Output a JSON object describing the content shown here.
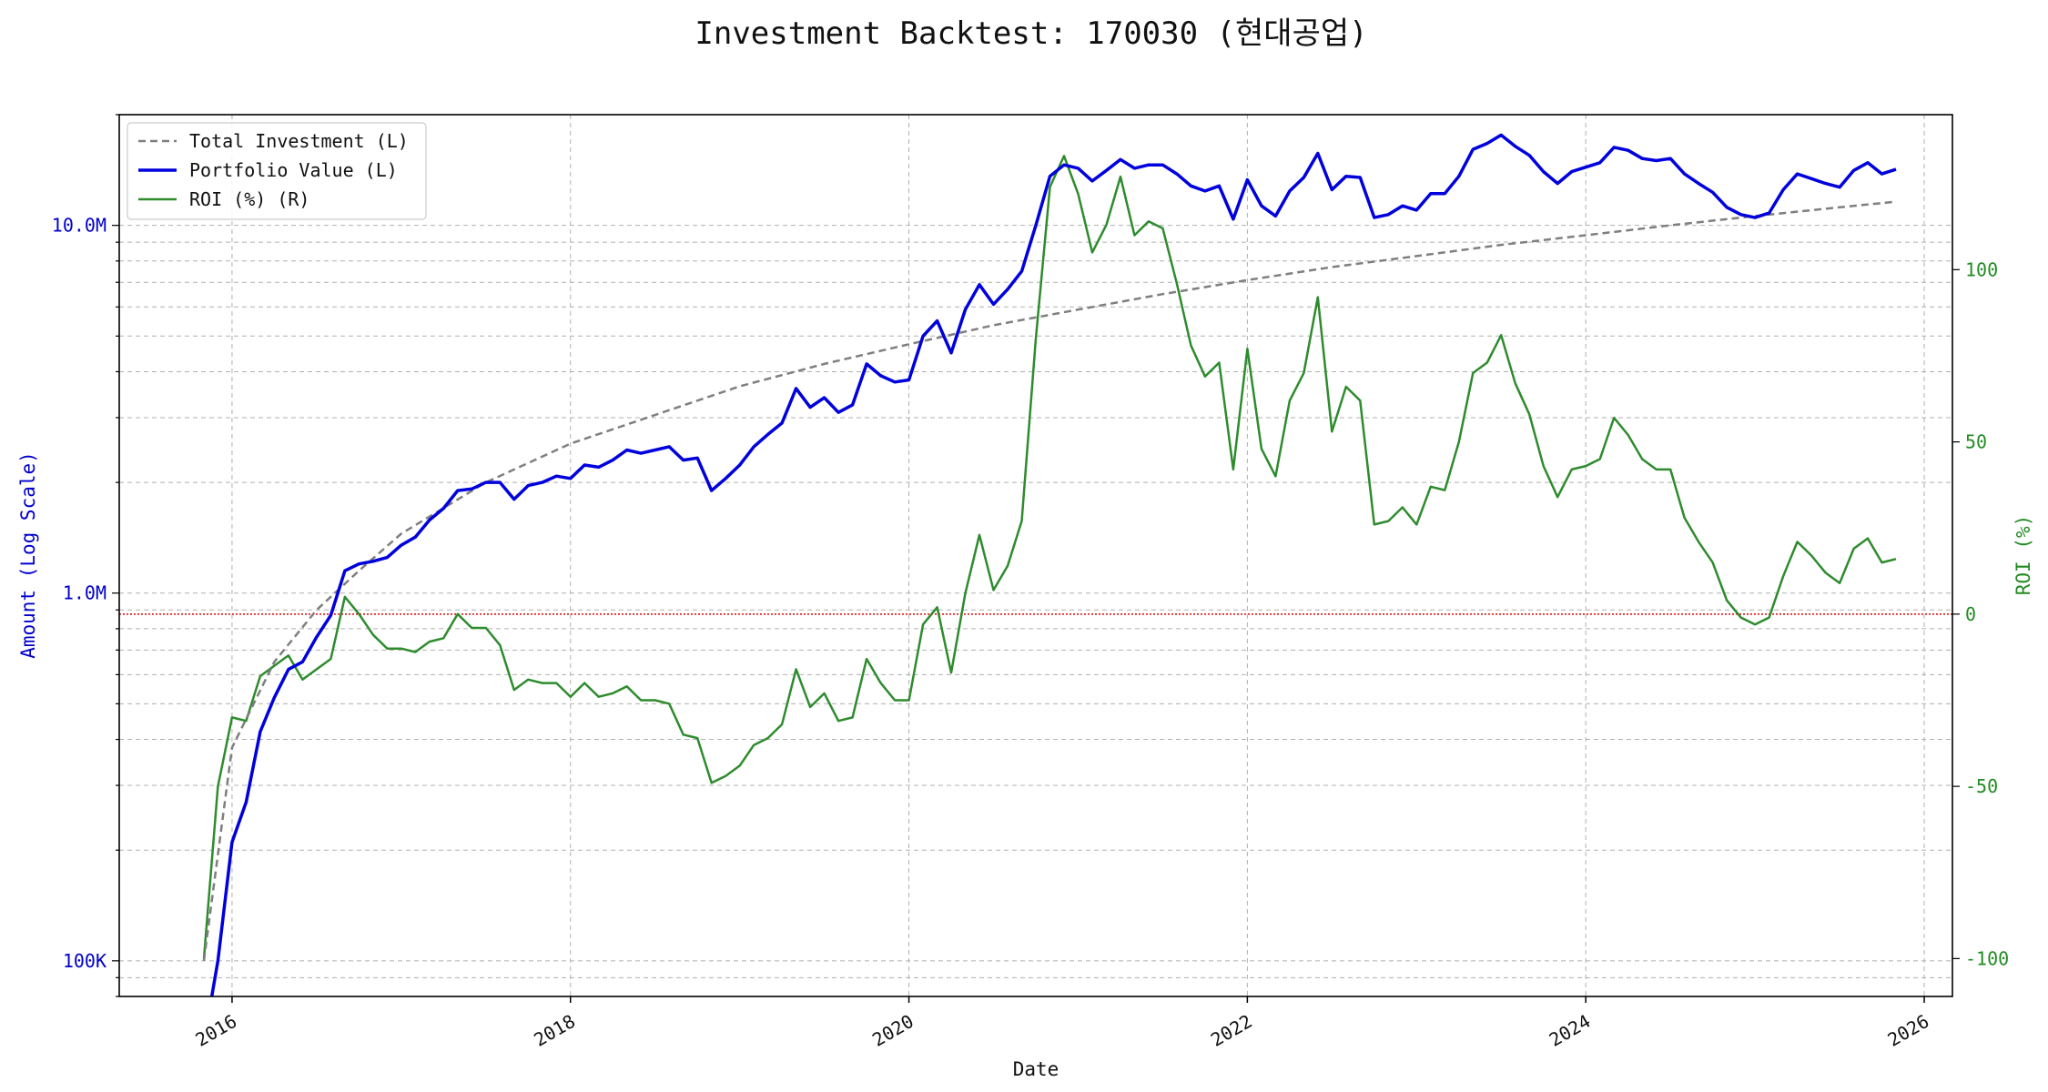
{
  "chart_data": {
    "type": "line",
    "title": "Investment Backtest: 170030 (현대공업)",
    "xlabel": "Date",
    "ylabel_left": "Amount (Log Scale)",
    "ylabel_right": "ROI (%)",
    "x_tick_labels": [
      "2016",
      "2018",
      "2020",
      "2022",
      "2024",
      "2026"
    ],
    "y_left_tick_labels": [
      "100K",
      "1.0M",
      "10.0M"
    ],
    "y_right_tick_labels": [
      "-100",
      "-50",
      "0",
      "50",
      "100"
    ],
    "y_left_scale": "log",
    "y_left_range": [
      80000,
      20000000
    ],
    "y_right_range": [
      -111,
      145
    ],
    "x_range": [
      "2015-05",
      "2026-03"
    ],
    "grid": true,
    "legend_position": "top-left",
    "reference_line": {
      "axis": "right",
      "value": 0,
      "color": "#dd0000",
      "style": "dotted"
    },
    "colors": {
      "investment": "#7f7f7f",
      "portfolio": "#0000dd",
      "roi": "#2e8b2e"
    },
    "series": [
      {
        "name": "Total Investment (L)",
        "axis": "left",
        "style": "dashed",
        "x": [
          "2015-11",
          "2016-01",
          "2016-04",
          "2016-07",
          "2016-10",
          "2017-01",
          "2017-07",
          "2018-01",
          "2018-07",
          "2019-01",
          "2019-07",
          "2020-01",
          "2020-07",
          "2021-01",
          "2021-07",
          "2022-01",
          "2022-07",
          "2023-01",
          "2023-07",
          "2024-01",
          "2024-07",
          "2025-01",
          "2025-07",
          "2025-11"
        ],
        "values": [
          100000,
          380000,
          650000,
          900000,
          1150000,
          1450000,
          2000000,
          2550000,
          3050000,
          3650000,
          4200000,
          4750000,
          5350000,
          5900000,
          6500000,
          7100000,
          7700000,
          8250000,
          8850000,
          9400000,
          10000000,
          10600000,
          11200000,
          11600000
        ]
      },
      {
        "name": "Portfolio Value (L)",
        "axis": "left",
        "style": "solid",
        "x": [
          "2015-11",
          "2015-12",
          "2016-01",
          "2016-02",
          "2016-03",
          "2016-04",
          "2016-05",
          "2016-06",
          "2016-07",
          "2016-08",
          "2016-09",
          "2016-10",
          "2016-11",
          "2016-12",
          "2017-01",
          "2017-02",
          "2017-03",
          "2017-04",
          "2017-05",
          "2017-06",
          "2017-07",
          "2017-08",
          "2017-09",
          "2017-10",
          "2017-11",
          "2017-12",
          "2018-01",
          "2018-02",
          "2018-03",
          "2018-04",
          "2018-05",
          "2018-06",
          "2018-07",
          "2018-08",
          "2018-09",
          "2018-10",
          "2018-11",
          "2018-12",
          "2019-01",
          "2019-02",
          "2019-03",
          "2019-04",
          "2019-05",
          "2019-06",
          "2019-07",
          "2019-08",
          "2019-09",
          "2019-10",
          "2019-11",
          "2019-12",
          "2020-01",
          "2020-02",
          "2020-03",
          "2020-04",
          "2020-05",
          "2020-06",
          "2020-07",
          "2020-08",
          "2020-09",
          "2020-10",
          "2020-11",
          "2020-12",
          "2021-01",
          "2021-02",
          "2021-03",
          "2021-04",
          "2021-05",
          "2021-06",
          "2021-07",
          "2021-08",
          "2021-09",
          "2021-10",
          "2021-11",
          "2021-12",
          "2022-01",
          "2022-02",
          "2022-03",
          "2022-04",
          "2022-05",
          "2022-06",
          "2022-07",
          "2022-08",
          "2022-09",
          "2022-10",
          "2022-11",
          "2022-12",
          "2023-01",
          "2023-02",
          "2023-03",
          "2023-04",
          "2023-05",
          "2023-06",
          "2023-07",
          "2023-08",
          "2023-09",
          "2023-10",
          "2023-11",
          "2023-12",
          "2024-01",
          "2024-02",
          "2024-03",
          "2024-04",
          "2024-05",
          "2024-06",
          "2024-07",
          "2024-08",
          "2024-09",
          "2024-10",
          "2024-11",
          "2024-12",
          "2025-01",
          "2025-02",
          "2025-03",
          "2025-04",
          "2025-05",
          "2025-06",
          "2025-07",
          "2025-08",
          "2025-09",
          "2025-10",
          "2025-11"
        ],
        "values": [
          60000,
          100000,
          210000,
          270000,
          420000,
          520000,
          620000,
          650000,
          760000,
          870000,
          1150000,
          1200000,
          1220000,
          1250000,
          1350000,
          1420000,
          1580000,
          1700000,
          1900000,
          1920000,
          2000000,
          2000000,
          1800000,
          1960000,
          2000000,
          2080000,
          2050000,
          2230000,
          2200000,
          2300000,
          2450000,
          2400000,
          2450000,
          2500000,
          2300000,
          2330000,
          1900000,
          2050000,
          2230000,
          2500000,
          2700000,
          2900000,
          3600000,
          3200000,
          3400000,
          3100000,
          3250000,
          4200000,
          3900000,
          3750000,
          3800000,
          5000000,
          5500000,
          4500000,
          5900000,
          6900000,
          6100000,
          6700000,
          7500000,
          10000000,
          13600000,
          14600000,
          14300000,
          13200000,
          14100000,
          15100000,
          14300000,
          14600000,
          14600000,
          13800000,
          12800000,
          12400000,
          12800000,
          10400000,
          13300000,
          11300000,
          10600000,
          12400000,
          13500000,
          15700000,
          12500000,
          13600000,
          13500000,
          10500000,
          10700000,
          11300000,
          11000000,
          12200000,
          12200000,
          13600000,
          16100000,
          16700000,
          17600000,
          16400000,
          15500000,
          14000000,
          13000000,
          14000000,
          14400000,
          14800000,
          16300000,
          16000000,
          15200000,
          15000000,
          15200000,
          13800000,
          13000000,
          12300000,
          11200000,
          10700000,
          10500000,
          10800000,
          12500000,
          13800000,
          13400000,
          13000000,
          12700000,
          14100000,
          14800000,
          13800000,
          14200000
        ]
      },
      {
        "name": "ROI (%) (R)",
        "axis": "right",
        "style": "solid",
        "x": [
          "2015-11",
          "2015-12",
          "2016-01",
          "2016-02",
          "2016-03",
          "2016-04",
          "2016-05",
          "2016-06",
          "2016-07",
          "2016-08",
          "2016-09",
          "2016-10",
          "2016-11",
          "2016-12",
          "2017-01",
          "2017-02",
          "2017-03",
          "2017-04",
          "2017-05",
          "2017-06",
          "2017-07",
          "2017-08",
          "2017-09",
          "2017-10",
          "2017-11",
          "2017-12",
          "2018-01",
          "2018-02",
          "2018-03",
          "2018-04",
          "2018-05",
          "2018-06",
          "2018-07",
          "2018-08",
          "2018-09",
          "2018-10",
          "2018-11",
          "2018-12",
          "2019-01",
          "2019-02",
          "2019-03",
          "2019-04",
          "2019-05",
          "2019-06",
          "2019-07",
          "2019-08",
          "2019-09",
          "2019-10",
          "2019-11",
          "2019-12",
          "2020-01",
          "2020-02",
          "2020-03",
          "2020-04",
          "2020-05",
          "2020-06",
          "2020-07",
          "2020-08",
          "2020-09",
          "2020-10",
          "2020-11",
          "2020-12",
          "2021-01",
          "2021-02",
          "2021-03",
          "2021-04",
          "2021-05",
          "2021-06",
          "2021-07",
          "2021-08",
          "2021-09",
          "2021-10",
          "2021-11",
          "2021-12",
          "2022-01",
          "2022-02",
          "2022-03",
          "2022-04",
          "2022-05",
          "2022-06",
          "2022-07",
          "2022-08",
          "2022-09",
          "2022-10",
          "2022-11",
          "2022-12",
          "2023-01",
          "2023-02",
          "2023-03",
          "2023-04",
          "2023-05",
          "2023-06",
          "2023-07",
          "2023-08",
          "2023-09",
          "2023-10",
          "2023-11",
          "2023-12",
          "2024-01",
          "2024-02",
          "2024-03",
          "2024-04",
          "2024-05",
          "2024-06",
          "2024-07",
          "2024-08",
          "2024-09",
          "2024-10",
          "2024-11",
          "2024-12",
          "2025-01",
          "2025-02",
          "2025-03",
          "2025-04",
          "2025-05",
          "2025-06",
          "2025-07",
          "2025-08",
          "2025-09",
          "2025-10",
          "2025-11"
        ],
        "values": [
          -100,
          -50,
          -30,
          -31,
          -18,
          -15,
          -12,
          -19,
          -16,
          -13,
          5,
          0,
          -6,
          -10,
          -10,
          -11,
          -8,
          -7,
          0,
          -4,
          -4,
          -9,
          -22,
          -19,
          -20,
          -20,
          -24,
          -20,
          -24,
          -23,
          -21,
          -25,
          -25,
          -26,
          -35,
          -36,
          -49,
          -47,
          -44,
          -38,
          -36,
          -32,
          -16,
          -27,
          -23,
          -31,
          -30,
          -13,
          -20,
          -25,
          -25,
          -3,
          2,
          -17,
          6,
          23,
          7,
          14,
          27,
          80,
          124,
          133,
          122,
          105,
          113,
          127,
          110,
          114,
          112,
          96,
          78,
          69,
          73,
          42,
          77,
          48,
          40,
          62,
          70,
          92,
          53,
          66,
          62,
          26,
          27,
          31,
          26,
          37,
          36,
          50,
          70,
          73,
          81,
          67,
          58,
          43,
          34,
          42,
          43,
          45,
          57,
          52,
          45,
          42,
          42,
          28,
          21,
          15,
          4,
          -1,
          -3,
          -1,
          11,
          21,
          17,
          12,
          9,
          19,
          22,
          15,
          16
        ]
      }
    ]
  }
}
